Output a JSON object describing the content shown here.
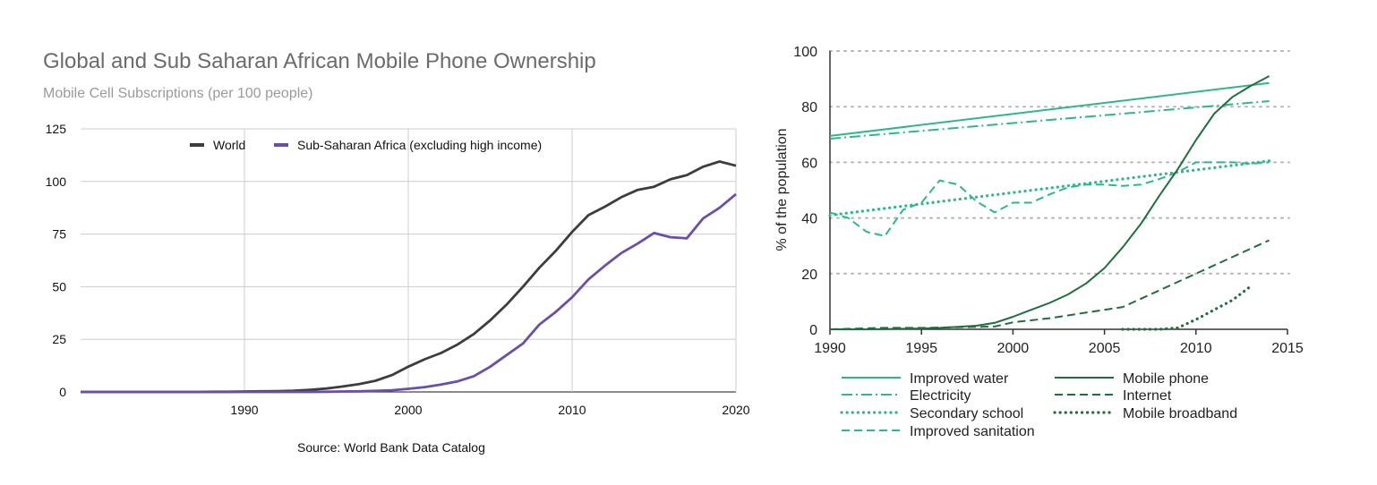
{
  "chart_data": [
    {
      "type": "line",
      "title": "Global and Sub Saharan African Mobile Phone Ownership",
      "subtitle": "Mobile Cell Subscriptions (per 100 people)",
      "source": "Source: World Bank Data Catalog",
      "xlabel": "",
      "ylabel": "",
      "xlim": [
        1980,
        2020
      ],
      "ylim": [
        0,
        125
      ],
      "xticks": [
        1990,
        2000,
        2010,
        2020
      ],
      "xtick_labels": [
        "1990",
        "2000",
        "2010",
        "2020"
      ],
      "yticks": [
        0,
        25,
        50,
        75,
        100,
        125
      ],
      "ytick_labels": [
        "0",
        "25",
        "50",
        "75",
        "100",
        "125"
      ],
      "grid": true,
      "legend_position": "top",
      "x": [
        1980,
        1981,
        1982,
        1983,
        1984,
        1985,
        1986,
        1987,
        1988,
        1989,
        1990,
        1991,
        1992,
        1993,
        1994,
        1995,
        1996,
        1997,
        1998,
        1999,
        2000,
        2001,
        2002,
        2003,
        2004,
        2005,
        2006,
        2007,
        2008,
        2009,
        2010,
        2011,
        2012,
        2013,
        2014,
        2015,
        2016,
        2017,
        2018,
        2019,
        2020
      ],
      "series": [
        {
          "name": "World",
          "color": "#3d3d3d",
          "values": [
            0,
            0,
            0,
            0,
            0,
            0,
            0,
            0,
            0.1,
            0.1,
            0.2,
            0.3,
            0.4,
            0.6,
            1.0,
            1.6,
            2.6,
            3.7,
            5.3,
            8.0,
            12.0,
            15.5,
            18.5,
            22.5,
            27.5,
            34.0,
            41.5,
            50.0,
            59.0,
            67.0,
            76.0,
            84.0,
            88.0,
            92.5,
            96.0,
            97.5,
            101.0,
            103.0,
            107.0,
            109.5,
            107.5
          ]
        },
        {
          "name": "Sub-Saharan Africa (excluding high income)",
          "color": "#6a4fa8",
          "values": [
            0,
            0,
            0,
            0,
            0,
            0,
            0,
            0,
            0,
            0,
            0,
            0,
            0,
            0,
            0,
            0.1,
            0.2,
            0.3,
            0.5,
            0.8,
            1.5,
            2.3,
            3.5,
            5.0,
            7.5,
            12.0,
            17.5,
            23.0,
            32.0,
            38.0,
            45.0,
            53.5,
            60.0,
            66.0,
            70.5,
            75.5,
            73.5,
            73.0,
            82.5,
            87.5,
            94.0
          ]
        }
      ]
    },
    {
      "type": "line",
      "title": "",
      "xlabel": "",
      "ylabel": "% of the population",
      "xlim": [
        1990,
        2015
      ],
      "ylim": [
        0,
        100
      ],
      "xticks": [
        1990,
        1995,
        2000,
        2005,
        2010,
        2015
      ],
      "xtick_labels": [
        "1990",
        "1995",
        "2000",
        "2005",
        "2010",
        "2015"
      ],
      "yticks": [
        0,
        20,
        40,
        60,
        80,
        100
      ],
      "ytick_labels": [
        "0",
        "20",
        "40",
        "60",
        "80",
        "100"
      ],
      "grid": "horizontal dotted",
      "legend_position": "bottom",
      "series": [
        {
          "name": "Improved water",
          "color": "#2eb886",
          "style": "solid",
          "x": [
            1990,
            2014
          ],
          "values": [
            69.5,
            88.5
          ]
        },
        {
          "name": "Electricity",
          "color": "#2eb886",
          "style": "dashdot",
          "x": [
            1990,
            2014
          ],
          "values": [
            68.5,
            82.0
          ]
        },
        {
          "name": "Secondary school",
          "color": "#2eb886",
          "style": "dotted",
          "x": [
            1990,
            2014
          ],
          "values": [
            41.0,
            60.5
          ]
        },
        {
          "name": "Improved sanitation",
          "color": "#2eb886",
          "style": "dashed",
          "x": [
            1990,
            1991,
            1992,
            1993,
            1994,
            1995,
            1996,
            1997,
            1998,
            1999,
            2000,
            2001,
            2002,
            2003,
            2004,
            2005,
            2006,
            2007,
            2008,
            2009,
            2010,
            2011,
            2012,
            2013,
            2014
          ],
          "values": [
            42.0,
            40.0,
            35.0,
            33.5,
            43.0,
            45.5,
            53.5,
            52.0,
            46.0,
            42.0,
            45.5,
            45.5,
            48.5,
            51.0,
            52.0,
            52.0,
            51.5,
            52.0,
            54.0,
            56.5,
            60.0,
            60.0,
            60.0,
            59.5,
            60.0
          ]
        },
        {
          "name": "Mobile phone",
          "color": "#1f6e3e",
          "style": "solid",
          "x": [
            1990,
            1991,
            1992,
            1993,
            1994,
            1995,
            1996,
            1997,
            1998,
            1999,
            2000,
            2001,
            2002,
            2003,
            2004,
            2005,
            2006,
            2007,
            2008,
            2009,
            2010,
            2011,
            2012,
            2013,
            2014
          ],
          "values": [
            0,
            0,
            0,
            0.1,
            0.2,
            0.3,
            0.5,
            0.9,
            1.3,
            2.3,
            4.5,
            7.0,
            9.5,
            12.5,
            16.5,
            22.0,
            29.5,
            38.0,
            48.0,
            57.5,
            68.0,
            77.5,
            83.5,
            87.5,
            91.0
          ]
        },
        {
          "name": "Internet",
          "color": "#1f6e3e",
          "style": "dashed",
          "x": [
            1990,
            1993,
            1995,
            1999,
            2000,
            2002,
            2004,
            2006,
            2008,
            2010,
            2012,
            2014
          ],
          "values": [
            0,
            0.5,
            0.5,
            1.0,
            2.5,
            4.0,
            6.0,
            8.0,
            14.0,
            20.0,
            26.0,
            32.0
          ],
          "tick_marks_only": true
        },
        {
          "name": "Mobile broadband",
          "color": "#1f6e3e",
          "style": "dotted",
          "x": [
            2006,
            2007,
            2008,
            2009,
            2010,
            2011,
            2012,
            2013
          ],
          "values": [
            0,
            0,
            0,
            0.5,
            3.5,
            7.0,
            10.5,
            15.5
          ]
        }
      ]
    }
  ]
}
